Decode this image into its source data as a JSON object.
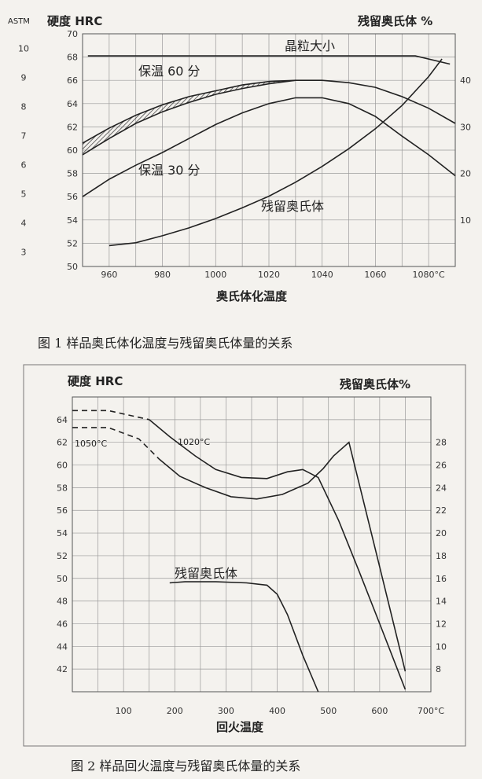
{
  "chart_data": [
    {
      "type": "line",
      "title": "",
      "left_axis_labels": [
        "ASTM",
        "硬度 HRC"
      ],
      "xlabel": "奥氏体化温度",
      "ylabel": "硬度 HRC",
      "y2label": "残留奥氏体 %",
      "caption": "图 1    样品奥氏体化温度与残留奥氏体量的关系",
      "xlim": [
        950,
        1090
      ],
      "ylim": [
        50,
        70
      ],
      "y2lim": [
        0,
        50
      ],
      "astm_ticks": [
        3,
        4,
        5,
        6,
        7,
        8,
        9,
        10
      ],
      "x_ticks": [
        960,
        980,
        1000,
        1020,
        1040,
        1060,
        1080
      ],
      "x_tick_labels": [
        "960",
        "980",
        "1000",
        "1020",
        "1040",
        "1060",
        "1080°C"
      ],
      "y_ticks": [
        50,
        52,
        54,
        56,
        58,
        60,
        62,
        64,
        66,
        68,
        70
      ],
      "y2_ticks": [
        10,
        20,
        30,
        40
      ],
      "annotations": [
        "晶粒大小",
        "保温 60 分",
        "保温 30 分",
        "残留奥氏体"
      ],
      "series": [
        {
          "name": "晶粒大小",
          "axis": "left",
          "x": [
            952,
            970,
            1000,
            1030,
            1060,
            1075,
            1088
          ],
          "y": [
            68.1,
            68.1,
            68.1,
            68.1,
            68.1,
            68.1,
            67.4
          ]
        },
        {
          "name": "保温 60 分",
          "axis": "left",
          "x": [
            950,
            960,
            970,
            980,
            990,
            1000,
            1010,
            1020,
            1030,
            1040,
            1050,
            1060,
            1070,
            1080,
            1090
          ],
          "y": [
            60.6,
            61.9,
            63.0,
            63.9,
            64.6,
            65.1,
            65.6,
            65.9,
            66.0,
            66.0,
            65.8,
            65.4,
            64.6,
            63.6,
            62.3
          ]
        },
        {
          "name": "保温 30 分",
          "axis": "left",
          "x": [
            950,
            960,
            970,
            980,
            990,
            1000,
            1010,
            1020,
            1030,
            1040,
            1050,
            1060,
            1070,
            1080,
            1090
          ],
          "y": [
            56.0,
            57.5,
            58.7,
            59.8,
            61.0,
            62.2,
            63.2,
            64.0,
            64.5,
            64.5,
            64.0,
            62.9,
            61.2,
            59.6,
            57.8
          ]
        },
        {
          "name": "保温 60 分 (lower)",
          "axis": "left",
          "x": [
            950,
            960,
            970,
            980,
            990,
            1000,
            1010,
            1020,
            1030
          ],
          "y": [
            59.6,
            61.0,
            62.3,
            63.3,
            64.1,
            64.8,
            65.3,
            65.7,
            66.0
          ]
        },
        {
          "name": "残留奥氏体",
          "axis": "right",
          "x": [
            960,
            970,
            980,
            990,
            1000,
            1010,
            1020,
            1030,
            1040,
            1050,
            1060,
            1070,
            1080,
            1085
          ],
          "y": [
            4.5,
            5.1,
            6.6,
            8.3,
            10.3,
            12.6,
            15.1,
            18.1,
            21.5,
            25.3,
            29.6,
            34.6,
            40.8,
            44.6
          ]
        }
      ]
    },
    {
      "type": "line",
      "title": "",
      "xlabel": "回火温度",
      "ylabel": "硬度 HRC",
      "y2label": "残留奥氏体%",
      "caption": "图 2    样品回火温度与残留奥氏体量的关系",
      "xlim": [
        0,
        700
      ],
      "ylim": [
        40,
        66
      ],
      "y2lim": [
        6,
        32
      ],
      "x_ticks": [
        100,
        200,
        300,
        400,
        500,
        600,
        700
      ],
      "x_tick_labels": [
        "100",
        "200",
        "300",
        "400",
        "500",
        "600",
        "700°C"
      ],
      "y_ticks": [
        42,
        44,
        46,
        48,
        50,
        52,
        54,
        56,
        58,
        60,
        62,
        64
      ],
      "y2_ticks": [
        8,
        10,
        12,
        14,
        16,
        18,
        20,
        22,
        24,
        26,
        28
      ],
      "annotations": [
        "1050°C",
        "1020°C",
        "残留奥氏体"
      ],
      "series": [
        {
          "name": "1020°C",
          "axis": "left",
          "x": [
            0,
            70,
            150,
            190,
            240,
            280,
            330,
            380,
            420,
            450,
            480,
            520,
            560,
            600,
            650
          ],
          "y": [
            64.8,
            64.8,
            64.0,
            62.5,
            60.8,
            59.6,
            58.9,
            58.8,
            59.4,
            59.6,
            58.9,
            55.1,
            50.6,
            46.0,
            40.2
          ]
        },
        {
          "name": "1050°C",
          "axis": "left",
          "x": [
            0,
            70,
            130,
            170,
            210,
            260,
            310,
            360,
            410,
            460,
            490,
            510,
            540,
            600,
            650
          ],
          "y": [
            63.3,
            63.3,
            62.3,
            60.5,
            59.0,
            58.0,
            57.2,
            57.0,
            57.4,
            58.4,
            59.7,
            60.8,
            62.0,
            51.0,
            41.8
          ]
        },
        {
          "name": "残留奥氏体",
          "axis": "right",
          "x": [
            190,
            220,
            280,
            340,
            380,
            400,
            420,
            450,
            480
          ],
          "y": [
            15.6,
            15.7,
            15.7,
            15.6,
            15.4,
            14.6,
            12.8,
            9.2,
            6.0
          ]
        }
      ]
    }
  ]
}
